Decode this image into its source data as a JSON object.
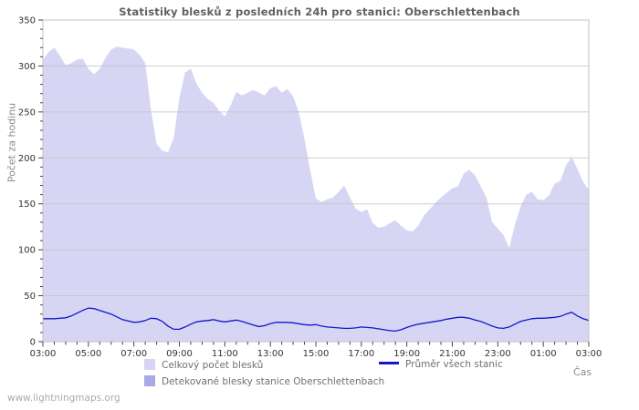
{
  "page": {
    "watermark": "www.lightningmaps.org"
  },
  "chart": {
    "title": "Statistiky blesků z posledních 24h pro stanici: Oberschlettenbach",
    "y_axis_label": "Počet za hodinu",
    "x_axis_label": "Čas",
    "colors": {
      "total_fill": "#d6d6f4",
      "station_fill": "#a9a9e6",
      "avg_line": "#1515cc",
      "grid": "#c3c3c3",
      "tick": "#444444",
      "axis_text": "#333333",
      "frame": "#c3c3c3"
    },
    "legend": {
      "total_label": "Celkový počet blesků",
      "avg_label": "Průměr všech stanic",
      "station_label": "Detekované blesky stanice Oberschlettenbach"
    }
  },
  "chart_data": {
    "type": "area",
    "title": "Statistiky blesků z posledních 24h pro stanici: Oberschlettenbach",
    "xlabel": "Čas",
    "ylabel": "Počet za hodinu",
    "ylim": [
      0,
      350
    ],
    "y_ticks": [
      0,
      50,
      100,
      150,
      200,
      250,
      300,
      350
    ],
    "x_tick_labels": [
      "03:00",
      "05:00",
      "07:00",
      "09:00",
      "11:00",
      "13:00",
      "15:00",
      "17:00",
      "19:00",
      "21:00",
      "23:00",
      "01:00",
      "03:00"
    ],
    "x_description": "24 hours, samples every 15 minutes starting 03:00",
    "grid": true,
    "legend_position": "bottom",
    "series": [
      {
        "name": "Celkový počet blesků",
        "type": "area",
        "color": "#d6d6f4",
        "values": [
          307,
          315,
          320,
          311,
          301,
          303,
          307,
          308,
          297,
          291,
          297,
          309,
          318,
          321,
          320,
          319,
          318,
          312,
          303,
          252,
          215,
          208,
          206,
          222,
          265,
          293,
          297,
          281,
          271,
          264,
          260,
          251,
          245,
          257,
          272,
          268,
          271,
          274,
          271,
          268,
          276,
          278,
          271,
          275,
          267,
          250,
          221,
          186,
          156,
          152,
          155,
          157,
          163,
          170,
          157,
          145,
          141,
          144,
          129,
          124,
          125,
          129,
          132,
          126,
          121,
          120,
          126,
          137,
          144,
          151,
          157,
          162,
          167,
          169,
          183,
          187,
          181,
          169,
          157,
          130,
          123,
          116,
          102,
          127,
          147,
          160,
          163,
          155,
          154,
          159,
          172,
          175,
          192,
          201,
          188,
          174,
          165
        ]
      },
      {
        "name": "Detekované blesky stanice Oberschlettenbach",
        "type": "area",
        "color": "#a9a9e6",
        "values": [
          0,
          0,
          0,
          0,
          0,
          0,
          0,
          0,
          0,
          0,
          0,
          0,
          0,
          0,
          0,
          0,
          0,
          0,
          0,
          0,
          0,
          0,
          0,
          0,
          0,
          0,
          0,
          0,
          0,
          0,
          0,
          0,
          0,
          0,
          0,
          0,
          0,
          0,
          0,
          0,
          0,
          0,
          0,
          0,
          0,
          0,
          0,
          0,
          0,
          0,
          0,
          0,
          0,
          0,
          0,
          0,
          0,
          0,
          0,
          0,
          0,
          0,
          0,
          0,
          0,
          0,
          0,
          0,
          0,
          0,
          0,
          0,
          0,
          0,
          0,
          0,
          0,
          0,
          0,
          0,
          0,
          0,
          0,
          0,
          0,
          0,
          0,
          0,
          0,
          0,
          0,
          0,
          0,
          0,
          0,
          0,
          0
        ]
      },
      {
        "name": "Průměr všech stanic",
        "type": "line",
        "color": "#1515cc",
        "values": [
          25,
          25,
          25,
          25.5,
          26,
          28,
          31,
          34,
          36.5,
          36,
          34,
          32,
          30,
          27,
          24,
          22.5,
          21,
          21.5,
          23,
          25.5,
          25,
          22,
          17,
          13.5,
          13.5,
          16,
          19,
          21.5,
          22.5,
          23,
          24,
          22.5,
          21.5,
          22.5,
          23.5,
          22,
          20,
          18,
          16.5,
          17.5,
          19.5,
          21,
          21,
          21,
          20.5,
          19.5,
          18.5,
          18,
          18.5,
          17,
          16,
          15.5,
          15,
          14.5,
          14.5,
          15,
          16,
          15.5,
          15,
          14,
          13,
          12,
          11.5,
          13,
          15.5,
          17.5,
          19,
          20,
          21,
          22,
          23,
          24.5,
          25.5,
          26.5,
          26.5,
          25.5,
          23.5,
          22,
          19.5,
          17,
          15,
          14.5,
          16,
          19,
          22,
          23.5,
          25,
          25.5,
          25.5,
          26,
          26.5,
          27.5,
          30,
          32,
          28,
          25,
          23
        ]
      }
    ]
  }
}
